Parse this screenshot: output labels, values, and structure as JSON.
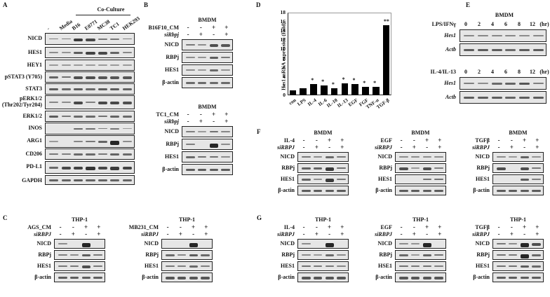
{
  "panels": {
    "A": {
      "label": "A",
      "group_label": "Co-Culture",
      "lanes": [
        "-",
        "Media",
        "B16",
        "E0771",
        "MC38",
        "TC1",
        "HEK293"
      ],
      "rows": [
        "NICD",
        "HES1",
        "HEY1",
        "pSTAT3 (Y705)",
        "STAT3",
        "pERK1/2\n(Thr202/Tyr204)",
        "ERK1/2",
        "INOS",
        "ARG1",
        "CD206",
        "PD-L1",
        "GAPDH"
      ]
    },
    "B": {
      "label": "B",
      "blots": [
        {
          "cell": "BMDM",
          "treatment": "B16F10_CM",
          "si": "siRbpj",
          "treat_signs": [
            "-",
            "-",
            "+",
            "+"
          ],
          "si_signs": [
            "-",
            "+",
            "-",
            "+"
          ],
          "rows": [
            "NICD",
            "RBPj",
            "HES1",
            "β-actin"
          ]
        },
        {
          "cell": "BMDM",
          "treatment": "TC1_CM",
          "si": "siRbpj",
          "treat_signs": [
            "-",
            "-",
            "+",
            "+"
          ],
          "si_signs": [
            "-",
            "+",
            "-",
            "+"
          ],
          "rows": [
            "NICD",
            "RBPj",
            "HES1",
            "β-actin"
          ]
        }
      ]
    },
    "C": {
      "label": "C",
      "blots": [
        {
          "cell": "THP-1",
          "treatment": "AGS_CM",
          "si": "siRBPJ",
          "treat_signs": [
            "-",
            "-",
            "+",
            "+"
          ],
          "si_signs": [
            "-",
            "+",
            "-",
            "+"
          ],
          "rows": [
            "NICD",
            "RBPj",
            "HES1",
            "β-actin"
          ]
        },
        {
          "cell": "THP-1",
          "treatment": "MB231_CM",
          "si": "siRBPJ",
          "treat_signs": [
            "-",
            "-",
            "+",
            "+"
          ],
          "si_signs": [
            "-",
            "+",
            "-",
            "+"
          ],
          "rows": [
            "NICD",
            "RBPj",
            "HES1",
            "β-actin"
          ]
        }
      ]
    },
    "D": {
      "label": "D"
    },
    "E": {
      "label": "E",
      "cell": "BMDM",
      "unit": "(hr)",
      "blocks": [
        {
          "treatment": "LPS/IFNγ",
          "times": [
            "0",
            "2",
            "4",
            "6",
            "8",
            "12"
          ],
          "rows": [
            "Hes1",
            "Actb"
          ]
        },
        {
          "treatment": "IL-4/IL-13",
          "times": [
            "0",
            "2",
            "4",
            "6",
            "8",
            "12"
          ],
          "rows": [
            "Hes1",
            "Actb"
          ]
        }
      ]
    },
    "F": {
      "label": "F",
      "blots": [
        {
          "cell": "BMDM",
          "treatment": "IL-4",
          "si": "siRBPJ",
          "treat_signs": [
            "-",
            "-",
            "+",
            "+"
          ],
          "si_signs": [
            "-",
            "+",
            "-",
            "+"
          ],
          "rows": [
            "NICD",
            "RBPj",
            "HES1",
            "β-actin"
          ]
        },
        {
          "cell": "BMDM",
          "treatment": "EGF",
          "si": "siRBPJ",
          "treat_signs": [
            "-",
            "-",
            "+",
            "+"
          ],
          "si_signs": [
            "-",
            "+",
            "-",
            "+"
          ],
          "rows": [
            "NICD",
            "RBPj",
            "HES1",
            "β-actin"
          ]
        },
        {
          "cell": "BMDM",
          "treatment": "TGFβ",
          "si": "siRBPJ",
          "treat_signs": [
            "-",
            "-",
            "+",
            "+"
          ],
          "si_signs": [
            "-",
            "+",
            "-",
            "+"
          ],
          "rows": [
            "NICD",
            "RBPj",
            "HES1",
            "β-actin"
          ]
        }
      ]
    },
    "G": {
      "label": "G",
      "blots": [
        {
          "cell": "THP-1",
          "treatment": "IL-4",
          "si": "siRBPJ",
          "treat_signs": [
            "-",
            "-",
            "+",
            "+"
          ],
          "si_signs": [
            "-",
            "+",
            "-",
            "+"
          ],
          "rows": [
            "NICD",
            "RBPj",
            "HES1",
            "β-actin"
          ]
        },
        {
          "cell": "THP-1",
          "treatment": "EGF",
          "si": "siRBPJ",
          "treat_signs": [
            "-",
            "-",
            "+",
            "+"
          ],
          "si_signs": [
            "-",
            "+",
            "-",
            "+"
          ],
          "rows": [
            "NICD",
            "RBPj",
            "HSE1",
            "β-actin"
          ]
        },
        {
          "cell": "THP-1",
          "treatment": "TGFβ",
          "si": "siRBPJ",
          "treat_signs": [
            "-",
            "-",
            "+",
            "+"
          ],
          "si_signs": [
            "-",
            "+",
            "-",
            "+"
          ],
          "rows": [
            "NICD",
            "RBPj",
            "HES1",
            "β-actin"
          ]
        }
      ]
    }
  },
  "chart_data": {
    "type": "bar",
    "title": "",
    "xlabel": "",
    "ylabel": "Hes1 mRNA expression (Fold)",
    "ylim": [
      0,
      18
    ],
    "yticks": [
      0,
      2,
      4,
      6,
      8,
      10,
      12,
      14,
      16,
      18
    ],
    "categories": [
      "con",
      "LPS",
      "IL-4",
      "IL-6",
      "IL-10",
      "IL-13",
      "EGF",
      "FGF",
      "TNF-α",
      "TGF-β"
    ],
    "values": [
      1.0,
      1.5,
      2.5,
      2.2,
      1.6,
      2.6,
      2.4,
      1.9,
      1.9,
      15.3
    ],
    "significance": [
      "",
      "",
      "*",
      "*",
      "*",
      "*",
      "*",
      "*",
      "*",
      "**"
    ],
    "grid": false
  }
}
